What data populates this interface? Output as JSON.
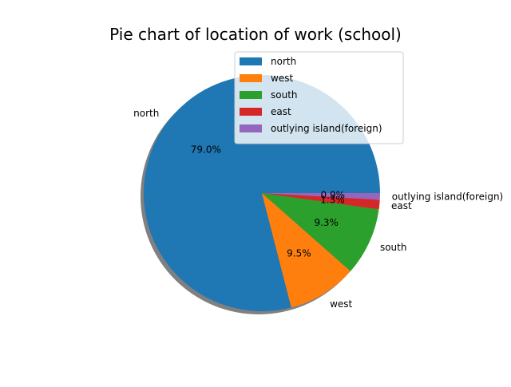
{
  "chart_data": {
    "type": "pie",
    "title": "Pie chart of location of work (school)",
    "slices": [
      {
        "label": "north",
        "value": 79.0,
        "pct_label": "79.0%",
        "color": "#1f77b4"
      },
      {
        "label": "west",
        "value": 9.5,
        "pct_label": "9.5%",
        "color": "#ff7f0e"
      },
      {
        "label": "south",
        "value": 9.3,
        "pct_label": "9.3%",
        "color": "#2ca02c"
      },
      {
        "label": "east",
        "value": 1.3,
        "pct_label": "1.3%",
        "color": "#d62728"
      },
      {
        "label": "outlying island(foreign)",
        "value": 0.9,
        "pct_label": "0.9%",
        "color": "#9467bd"
      }
    ],
    "legend": {
      "placement": "top-right",
      "entries": [
        "north",
        "west",
        "south",
        "east",
        "outlying island(foreign)"
      ]
    },
    "shadow": true
  }
}
